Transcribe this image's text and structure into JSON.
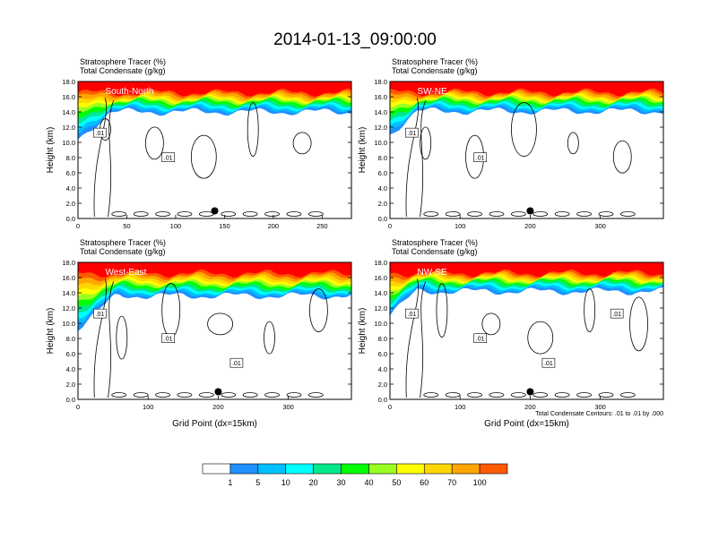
{
  "title": "2014-01-13_09:00:00",
  "chart_data": [
    {
      "type": "heatmap",
      "label": "South-North",
      "var1": "Stratosphere Tracer   (%)",
      "var2": "Total Condensate   (g/kg)",
      "ylabel": "Height (km)",
      "xlabel": "",
      "xlim": [
        0,
        280
      ],
      "xticks": [
        0,
        50,
        100,
        150,
        200,
        250
      ],
      "ylim": [
        0,
        18
      ],
      "yticks": [
        "0.0",
        "2.0",
        "4.0",
        "6.0",
        "8.0",
        "10.0",
        "12.0",
        "14.0",
        "16.0",
        "18.0"
      ],
      "marker": [
        140,
        1.0
      ],
      "contour_labels": [
        ".01",
        ".01"
      ]
    },
    {
      "type": "heatmap",
      "label": "SW-NE",
      "var1": "Stratosphere Tracer   (%)",
      "var2": "Total Condensate   (g/kg)",
      "ylabel": "Height (km)",
      "xlabel": "",
      "xlim": [
        0,
        390
      ],
      "xticks": [
        0,
        100,
        200,
        300
      ],
      "ylim": [
        0,
        18
      ],
      "yticks": [
        "0.0",
        "2.0",
        "4.0",
        "6.0",
        "8.0",
        "10.0",
        "12.0",
        "14.0",
        "16.0",
        "18.0"
      ],
      "marker": [
        200,
        1.0
      ],
      "contour_labels": [
        ".01",
        ".01"
      ]
    },
    {
      "type": "heatmap",
      "label": "West-East",
      "var1": "Stratosphere Tracer   (%)",
      "var2": "Total Condensate   (g/kg)",
      "ylabel": "Height (km)",
      "xlabel": "Grid Point (dx=15km)",
      "xlim": [
        0,
        390
      ],
      "xticks": [
        0,
        100,
        200,
        300
      ],
      "ylim": [
        0,
        18
      ],
      "yticks": [
        "0.0",
        "2.0",
        "4.0",
        "6.0",
        "8.0",
        "10.0",
        "12.0",
        "14.0",
        "16.0",
        "18.0"
      ],
      "marker": [
        200,
        1.0
      ],
      "contour_labels": [
        ".01",
        ".01",
        ".01"
      ]
    },
    {
      "type": "heatmap",
      "label": "NW-SE",
      "var1": "Stratosphere Tracer   (%)",
      "var2": "Total Condensate   (g/kg)",
      "ylabel": "Height (km)",
      "xlabel": "Grid Point (dx=15km)",
      "xlim": [
        0,
        390
      ],
      "xticks": [
        0,
        100,
        200,
        300
      ],
      "ylim": [
        0,
        18
      ],
      "yticks": [
        "0.0",
        "2.0",
        "4.0",
        "6.0",
        "8.0",
        "10.0",
        "12.0",
        "14.0",
        "16.0",
        "18.0"
      ],
      "marker": [
        200,
        1.0
      ],
      "contour_labels": [
        ".01",
        ".01",
        ".01",
        ".01"
      ],
      "note": "Total Condensate Contours: .01 to .01 by .000"
    }
  ],
  "colorbar": {
    "levels": [
      "1",
      "5",
      "10",
      "20",
      "30",
      "40",
      "50",
      "60",
      "70",
      "100"
    ],
    "colors": [
      "#ffffff",
      "#1e90ff",
      "#00bfff",
      "#00ffff",
      "#00e88a",
      "#00ff00",
      "#9aff20",
      "#ffff00",
      "#ffd700",
      "#ffa500",
      "#ff5a00",
      "#ff0000"
    ]
  }
}
